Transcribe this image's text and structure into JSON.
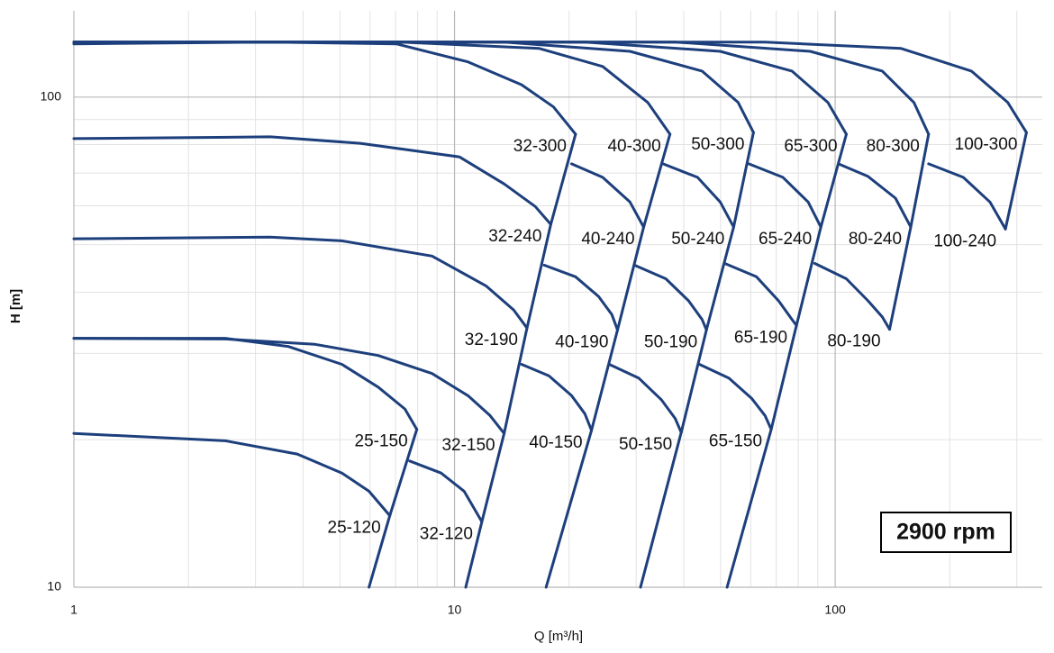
{
  "chart_data": {
    "type": "line",
    "x_label": "Q [m³/h]",
    "y_label": "H [m]",
    "annotation": "2900 rpm",
    "xscale": "log",
    "yscale": "log",
    "grid": true,
    "xlim": [
      1,
      350
    ],
    "ylim": [
      10,
      150
    ],
    "xticks": [
      1,
      10,
      100
    ],
    "yticks": [
      10,
      100
    ],
    "xminorticks": [
      2,
      3,
      4,
      5,
      6,
      7,
      8,
      9,
      20,
      30,
      40,
      50,
      60,
      70,
      80,
      90,
      200,
      300
    ],
    "yminorticks": [
      20,
      30,
      40,
      50,
      60,
      70,
      80,
      90
    ],
    "color": "#1d3f7c",
    "series": [
      {
        "name": "25-120",
        "x": [
          1,
          2.5,
          3.86,
          5.06,
          5.96,
          6.76
        ],
        "values": [
          20.6,
          19.9,
          18.7,
          17.1,
          15.7,
          14.0
        ]
      },
      {
        "name": "25-150",
        "x": [
          1,
          2.5,
          3.65,
          5.06,
          6.3,
          7.41,
          7.96
        ],
        "values": [
          32.2,
          32.2,
          31.0,
          28.5,
          25.6,
          23.1,
          21.0
        ]
      },
      {
        "name": "32-120",
        "x": [
          7.62,
          9.22,
          10.6,
          11.8
        ],
        "values": [
          18.1,
          17.1,
          15.7,
          13.6
        ]
      },
      {
        "name": "32-150",
        "x": [
          1,
          2.5,
          4.3,
          6.3,
          8.73,
          10.85,
          12.4,
          13.5
        ],
        "values": [
          32.2,
          32.1,
          31.3,
          29.7,
          27.3,
          24.6,
          22.4,
          20.6
        ]
      },
      {
        "name": "40-150",
        "x": [
          15.0,
          17.7,
          20.3,
          22.0,
          22.9
        ],
        "values": [
          28.5,
          27.0,
          24.6,
          22.6,
          20.9
        ]
      },
      {
        "name": "50-150",
        "x": [
          25.5,
          30.5,
          35.0,
          38.0,
          39.4
        ],
        "values": [
          28.5,
          26.7,
          24.1,
          22.1,
          20.7
        ]
      },
      {
        "name": "65-150",
        "x": [
          44.0,
          52.6,
          60.3,
          65.4,
          67.9
        ],
        "values": [
          28.5,
          26.7,
          24.3,
          22.4,
          21.0
        ]
      },
      {
        "name": "32-190",
        "x": [
          1,
          3.28,
          5.06,
          8.73,
          12.1,
          14.3,
          15.5
        ],
        "values": [
          51.4,
          51.8,
          50.9,
          47.4,
          41.2,
          36.8,
          33.8
        ]
      },
      {
        "name": "40-190",
        "x": [
          17.2,
          20.8,
          23.9,
          25.9,
          26.8
        ],
        "values": [
          45.4,
          43.0,
          39.2,
          36.0,
          33.5
        ]
      },
      {
        "name": "50-190",
        "x": [
          29.7,
          35.9,
          41.2,
          44.7,
          45.9
        ],
        "values": [
          45.4,
          42.6,
          38.4,
          35.2,
          33.5
        ]
      },
      {
        "name": "65-190",
        "x": [
          51.2,
          62.1,
          71.0,
          77.0,
          79.1
        ],
        "values": [
          45.8,
          43.0,
          38.4,
          35.2,
          34.2
        ]
      },
      {
        "name": "80-190",
        "x": [
          88.3,
          107,
          122,
          133,
          139
        ],
        "values": [
          45.8,
          42.6,
          38.4,
          35.6,
          33.6
        ]
      },
      {
        "name": "32-240",
        "x": [
          1,
          3.28,
          5.65,
          10.3,
          13.5,
          16.3,
          17.9
        ],
        "values": [
          82.3,
          83.0,
          80.5,
          75.5,
          66.5,
          59.8,
          55.0
        ]
      },
      {
        "name": "40-240",
        "x": [
          20.3,
          24.5,
          28.9,
          31.4
        ],
        "values": [
          73.1,
          68.6,
          61.1,
          54.3
        ]
      },
      {
        "name": "50-240",
        "x": [
          35.3,
          43.5,
          49.9,
          54.1
        ],
        "values": [
          73.1,
          68.6,
          61.1,
          54.3
        ]
      },
      {
        "name": "65-240",
        "x": [
          59.3,
          72.9,
          84.9,
          91.7
        ],
        "values": [
          73.1,
          68.6,
          61.1,
          54.3
        ]
      },
      {
        "name": "80-240",
        "x": [
          102,
          122,
          144,
          158
        ],
        "values": [
          73.1,
          68.9,
          62.2,
          54.3
        ]
      },
      {
        "name": "100-240",
        "x": [
          176,
          217,
          255,
          280
        ],
        "values": [
          73.1,
          68.6,
          61.1,
          53.8
        ]
      },
      {
        "name": "32-300",
        "x": [
          1,
          3.28,
          7.03,
          10.85,
          15.0,
          18.2,
          20.8
        ],
        "values": [
          128.4,
          129.5,
          128.4,
          118,
          106,
          95.5,
          84.0
        ]
      },
      {
        "name": "40-300",
        "x": [
          1,
          7.2,
          16.7,
          24.5,
          32.2,
          36.8
        ],
        "values": [
          129.5,
          129.5,
          125.7,
          115.5,
          97.5,
          84.0
        ]
      },
      {
        "name": "50-300",
        "x": [
          1,
          13.5,
          28.9,
          44.7,
          55.6,
          61.0
        ],
        "values": [
          129.5,
          129.5,
          124,
          113,
          97.5,
          84.7
        ]
      },
      {
        "name": "65-300",
        "x": [
          1,
          22.0,
          49.9,
          77.0,
          95.7,
          107
        ],
        "values": [
          129.5,
          129.5,
          124,
          113,
          97.5,
          84.0
        ]
      },
      {
        "name": "80-300",
        "x": [
          1,
          38.0,
          86,
          133,
          161,
          176
        ],
        "values": [
          129.5,
          129.5,
          124,
          113,
          97.5,
          84.0
        ]
      },
      {
        "name": "100-300",
        "x": [
          1,
          65.4,
          149,
          228,
          284,
          318
        ],
        "values": [
          129.5,
          129.5,
          125.7,
          113,
          97.5,
          84.7
        ]
      },
      {
        "x": [
          7.96,
          6.76,
          5.96
        ],
        "values": [
          21.0,
          14.0,
          10
        ]
      },
      {
        "x": [
          20.8,
          17.9,
          15.5,
          13.5,
          11.8,
          10.7
        ],
        "values": [
          84.0,
          55.0,
          33.8,
          20.6,
          13.6,
          10
        ]
      },
      {
        "x": [
          36.8,
          31.4,
          26.8,
          22.9,
          17.4
        ],
        "values": [
          84.0,
          54.3,
          33.5,
          20.9,
          10
        ]
      },
      {
        "x": [
          61.0,
          54.1,
          45.9,
          39.4,
          30.8
        ],
        "values": [
          84.7,
          54.3,
          33.5,
          20.7,
          10
        ]
      },
      {
        "x": [
          107,
          91.7,
          79.1,
          67.9,
          52.0
        ],
        "values": [
          84.0,
          54.3,
          34.2,
          21.0,
          10
        ]
      },
      {
        "x": [
          176,
          158,
          139
        ],
        "values": [
          84.0,
          54.3,
          33.6
        ]
      },
      {
        "x": [
          318,
          280
        ],
        "values": [
          84.7,
          53.8
        ]
      }
    ]
  }
}
